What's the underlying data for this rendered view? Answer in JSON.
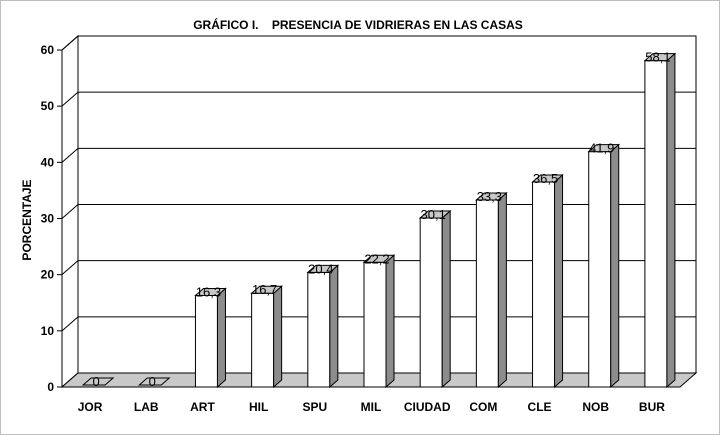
{
  "chart_data": {
    "type": "bar",
    "title": "GRÁFICO I.    PRESENCIA DE VIDRIERAS EN LAS CASAS",
    "xlabel": "",
    "ylabel": "PORCENTAJE",
    "categories": [
      "JOR",
      "LAB",
      "ART",
      "HIL",
      "SPU",
      "MIL",
      "CIUDAD",
      "COM",
      "CLE",
      "NOB",
      "BUR"
    ],
    "values": [
      0,
      0,
      16.3,
      16.7,
      20.4,
      22.2,
      30.1,
      33.3,
      36.5,
      41.9,
      58.1
    ],
    "data_labels": [
      "0",
      "0",
      "16,3",
      "16,7",
      "20,4",
      "22,2",
      "30,1",
      "33,3",
      "36,5",
      "41,9",
      "58,1"
    ],
    "ylim": [
      0,
      60
    ],
    "yticks": [
      "0",
      "10",
      "20",
      "30",
      "40",
      "50",
      "60"
    ],
    "grid": true,
    "legend": "none",
    "colors": {
      "bar_front": "#ffffff",
      "bar_side": "#8c8c8c",
      "bar_top": "#c8c8c8",
      "floor": "#c8c8c8",
      "grid": "#000000"
    }
  }
}
